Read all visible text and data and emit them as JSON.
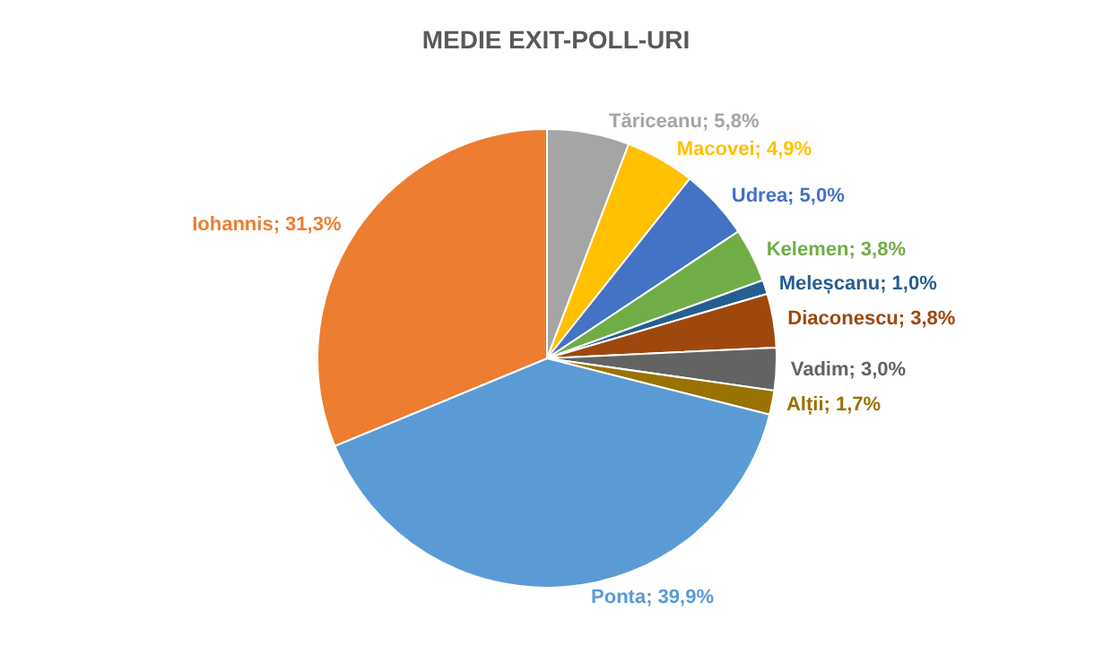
{
  "chart_data": {
    "type": "pie",
    "title": "MEDIE EXIT-POLL-URI",
    "categories": [
      "Tăriceanu",
      "Macovei",
      "Udrea",
      "Kelemen",
      "Meleșcanu",
      "Diaconescu",
      "Vadim",
      "Alții",
      "Ponta",
      "Iohannis"
    ],
    "values": [
      5.8,
      4.9,
      5.0,
      3.8,
      1.0,
      3.8,
      3.0,
      1.7,
      39.9,
      31.3
    ],
    "colors": [
      "#a5a5a5",
      "#ffc000",
      "#4472c4",
      "#70ad47",
      "#255e91",
      "#9e480e",
      "#636363",
      "#997300",
      "#5b9bd5",
      "#ed7d31"
    ],
    "value_labels": [
      "5,8%",
      "4,9%",
      "5,0%",
      "3,8%",
      "1,0%",
      "3,8%",
      "3,0%",
      "1,7%",
      "39,9%",
      "31,3%"
    ],
    "legend": false
  }
}
